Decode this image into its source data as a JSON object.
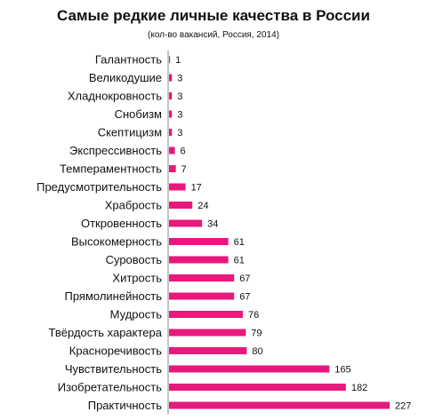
{
  "chart_data": {
    "type": "bar",
    "orientation": "horizontal",
    "title": "Самые редкие личные качества в России",
    "subtitle": "(кол-во вакансий, Россия, 2014)",
    "categories": [
      "Галантность",
      "Великодушие",
      "Хладнокровность",
      "Снобизм",
      "Скептицизм",
      "Экспрессивность",
      "Темпераментность",
      "Предусмотрительность",
      "Храбрость",
      "Откровенность",
      "Высокомерность",
      "Суровость",
      "Хитрость",
      "Прямолинейность",
      "Мудрость",
      "Твёрдость характера",
      "Красноречивость",
      "Чувствительность",
      "Изобретательность",
      "Практичность"
    ],
    "values": [
      1,
      3,
      3,
      3,
      3,
      6,
      7,
      17,
      24,
      34,
      61,
      61,
      67,
      67,
      76,
      79,
      80,
      165,
      182,
      227
    ],
    "bar_color": "#e8197d",
    "xlim": [
      0,
      227
    ],
    "grid": false,
    "data_labels": true
  }
}
